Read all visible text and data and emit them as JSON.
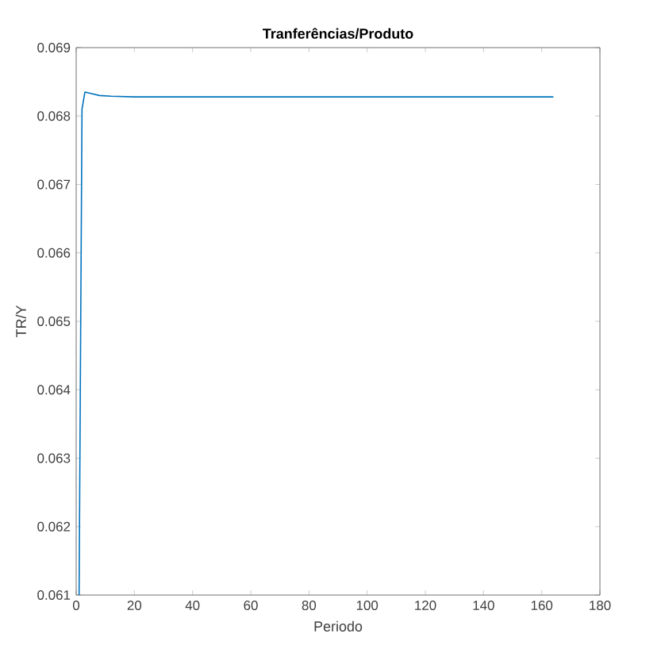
{
  "chart_data": {
    "type": "line",
    "title": "Tranferências/Produto",
    "xlabel": "Periodo",
    "ylabel": "TR/Y",
    "x": [
      1,
      2,
      3,
      5,
      8,
      12,
      20,
      40,
      80,
      120,
      164
    ],
    "series": [
      {
        "color": "#0072bd",
        "values": [
          0.061,
          0.0681,
          0.06835,
          0.06833,
          0.0683,
          0.06829,
          0.06828,
          0.06828,
          0.06828,
          0.06828,
          0.06828
        ]
      }
    ],
    "xlim": [
      0,
      180
    ],
    "xticks": [
      0,
      20,
      40,
      60,
      80,
      100,
      120,
      140,
      160,
      180
    ],
    "ylim": [
      0.061,
      0.069
    ],
    "yticks": [
      0.061,
      0.062,
      0.063,
      0.064,
      0.065,
      0.066,
      0.067,
      0.068,
      0.069
    ],
    "grid": false,
    "marker": "none",
    "line_style": "solid"
  }
}
